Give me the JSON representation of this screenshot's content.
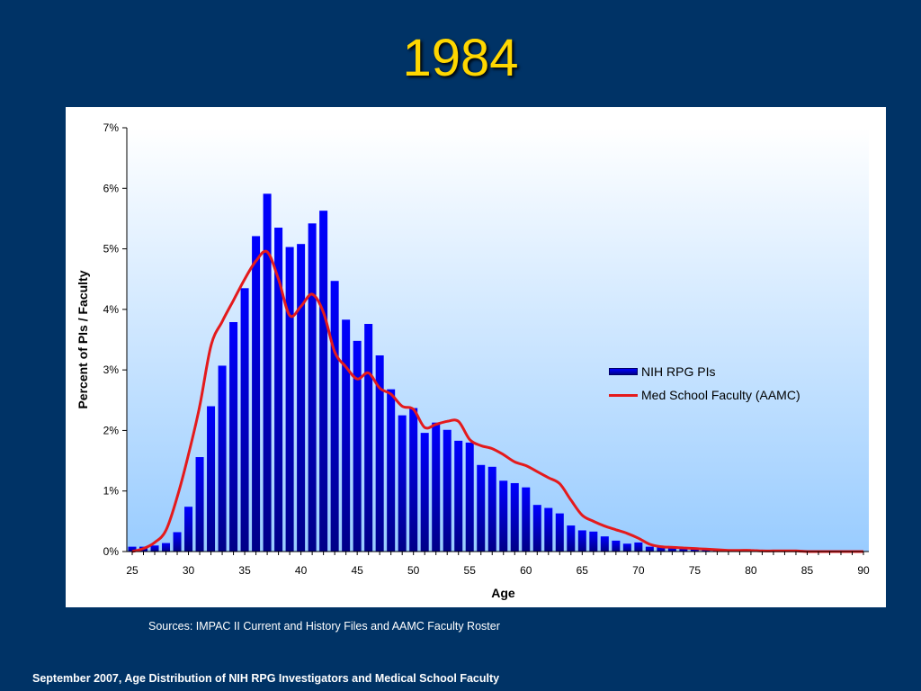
{
  "slide": {
    "title": "1984",
    "sources": "Sources:  IMPAC II Current and History Files and AAMC Faculty Roster",
    "footer": "September 2007, Age Distribution of NIH RPG Investigators and Medical School Faculty"
  },
  "colors": {
    "background": "#003366",
    "title": "#FFD700",
    "bar_top": "#0000FF",
    "bar_bottom": "#000088",
    "line": "#E41A1C",
    "plot_bg_top": "#FFFFFF",
    "plot_bg_bottom": "#99CCFF"
  },
  "chart_data": {
    "type": "bar",
    "title": "",
    "xlabel": "Age",
    "ylabel": "Percent of PIs / Faculty",
    "xlim": [
      25,
      90
    ],
    "ylim": [
      0,
      7
    ],
    "x_ticks": [
      25,
      30,
      35,
      40,
      45,
      50,
      55,
      60,
      65,
      70,
      75,
      80,
      85,
      90
    ],
    "y_ticks": [
      "0%",
      "1%",
      "2%",
      "3%",
      "4%",
      "5%",
      "6%",
      "7%"
    ],
    "grid": false,
    "legend_position": "right",
    "series": [
      {
        "name": "NIH RPG PIs",
        "kind": "bar",
        "x": [
          25,
          26,
          27,
          28,
          29,
          30,
          31,
          32,
          33,
          34,
          35,
          36,
          37,
          38,
          39,
          40,
          41,
          42,
          43,
          44,
          45,
          46,
          47,
          48,
          49,
          50,
          51,
          52,
          53,
          54,
          55,
          56,
          57,
          58,
          59,
          60,
          61,
          62,
          63,
          64,
          65,
          66,
          67,
          68,
          69,
          70,
          71,
          72,
          73,
          74,
          75,
          76,
          77,
          78,
          79,
          80,
          81,
          82,
          83,
          84,
          85,
          86,
          87,
          88,
          89,
          90
        ],
        "values": [
          0.08,
          0.08,
          0.1,
          0.14,
          0.32,
          0.74,
          1.56,
          2.4,
          3.07,
          3.79,
          4.35,
          5.21,
          5.91,
          5.35,
          5.03,
          5.08,
          5.42,
          5.63,
          4.47,
          3.83,
          3.48,
          3.76,
          3.24,
          2.68,
          2.25,
          2.37,
          1.96,
          2.13,
          2.01,
          1.83,
          1.8,
          1.43,
          1.4,
          1.17,
          1.13,
          1.06,
          0.77,
          0.72,
          0.63,
          0.43,
          0.35,
          0.33,
          0.25,
          0.18,
          0.13,
          0.15,
          0.08,
          0.07,
          0.06,
          0.05,
          0.04,
          0.03,
          0.02,
          0.02,
          0.01,
          0.01,
          0.01,
          0.0,
          0.0,
          0.0,
          0.0,
          0.0,
          0.0,
          0.0,
          0.0,
          0.0
        ]
      },
      {
        "name": "Med School Faculty (AAMC)",
        "kind": "line",
        "x": [
          25,
          26,
          27,
          28,
          29,
          30,
          31,
          32,
          33,
          34,
          35,
          36,
          37,
          38,
          39,
          40,
          41,
          42,
          43,
          44,
          45,
          46,
          47,
          48,
          49,
          50,
          51,
          52,
          53,
          54,
          55,
          56,
          57,
          58,
          59,
          60,
          61,
          62,
          63,
          64,
          65,
          66,
          67,
          68,
          69,
          70,
          71,
          72,
          73,
          74,
          75,
          76,
          77,
          78,
          79,
          80,
          81,
          82,
          83,
          84,
          85,
          86,
          87,
          88,
          89,
          90
        ],
        "values": [
          0.0,
          0.05,
          0.15,
          0.35,
          0.9,
          1.6,
          2.4,
          3.4,
          3.8,
          4.15,
          4.5,
          4.8,
          4.95,
          4.5,
          3.9,
          4.05,
          4.25,
          3.95,
          3.3,
          3.05,
          2.85,
          2.95,
          2.7,
          2.6,
          2.4,
          2.35,
          2.05,
          2.1,
          2.15,
          2.15,
          1.85,
          1.75,
          1.7,
          1.6,
          1.48,
          1.42,
          1.32,
          1.22,
          1.12,
          0.85,
          0.6,
          0.5,
          0.42,
          0.36,
          0.3,
          0.22,
          0.12,
          0.08,
          0.07,
          0.06,
          0.05,
          0.04,
          0.03,
          0.02,
          0.02,
          0.02,
          0.01,
          0.01,
          0.01,
          0.01,
          0.0,
          0.0,
          0.0,
          0.0,
          0.0,
          0.0
        ]
      }
    ]
  }
}
